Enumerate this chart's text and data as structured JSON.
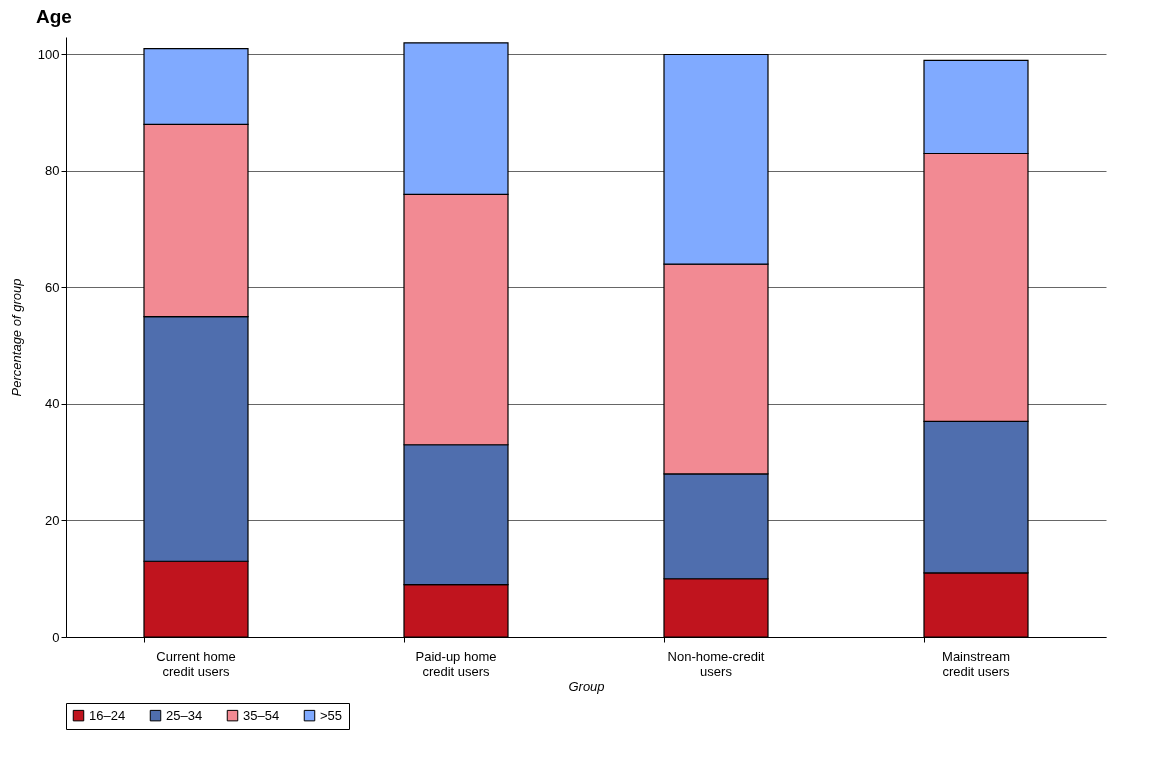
{
  "chart_data": {
    "type": "bar",
    "title": "Age",
    "xlabel": "Group",
    "ylabel": "Percentage of group",
    "stacked": true,
    "categories": [
      "Current home credit users",
      "Paid-up home credit users",
      "Non-home-credit users",
      "Mainstream credit users"
    ],
    "series": [
      {
        "name": "16–24",
        "color": "#c0141e",
        "values": [
          13,
          9,
          10,
          11
        ]
      },
      {
        "name": "25–34",
        "color": "#4f6eae",
        "values": [
          42,
          24,
          18,
          26
        ]
      },
      {
        "name": "35–54",
        "color": "#f28a93",
        "values": [
          33,
          43,
          36,
          46
        ]
      },
      {
        "name": ">55",
        "color": "#80aaff",
        "values": [
          13,
          26,
          36,
          16
        ]
      }
    ],
    "ylim": [
      0,
      103
    ],
    "yticks": [
      0,
      20,
      40,
      60,
      80,
      100
    ],
    "grid": "y",
    "legend": "bottom"
  }
}
